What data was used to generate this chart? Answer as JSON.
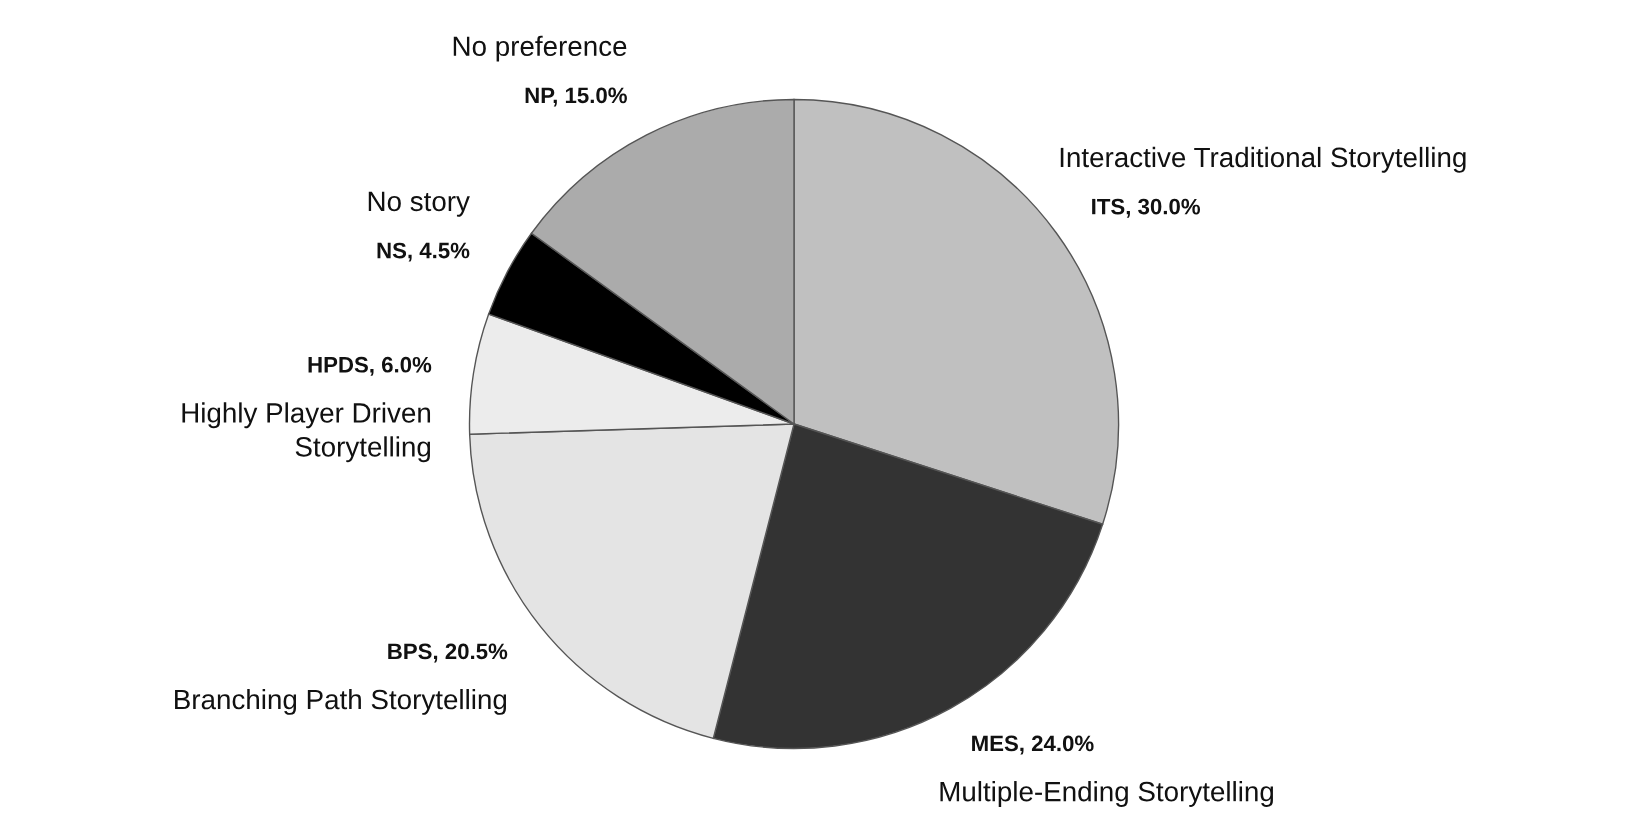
{
  "chart_data": {
    "type": "pie",
    "categories": [
      "ITS",
      "MES",
      "BPS",
      "HPDS",
      "NS",
      "NP"
    ],
    "values": [
      30.0,
      24.0,
      20.5,
      6.0,
      4.5,
      15.0
    ],
    "value_labels": [
      "30.0%",
      "24.0%",
      "20.5%",
      "6.0%",
      "4.5%",
      "15.0%"
    ],
    "colors": [
      "#c0c0c0",
      "#333333",
      "#e4e4e4",
      "#ececec",
      "#000000",
      "#ababab"
    ],
    "annotations": [
      "Interactive Traditional Storytelling",
      "Multiple-Ending Storytelling",
      "Branching Path Storytelling",
      "Highly Player Driven\nStorytelling",
      "No story",
      "No preference"
    ],
    "legend": false
  }
}
